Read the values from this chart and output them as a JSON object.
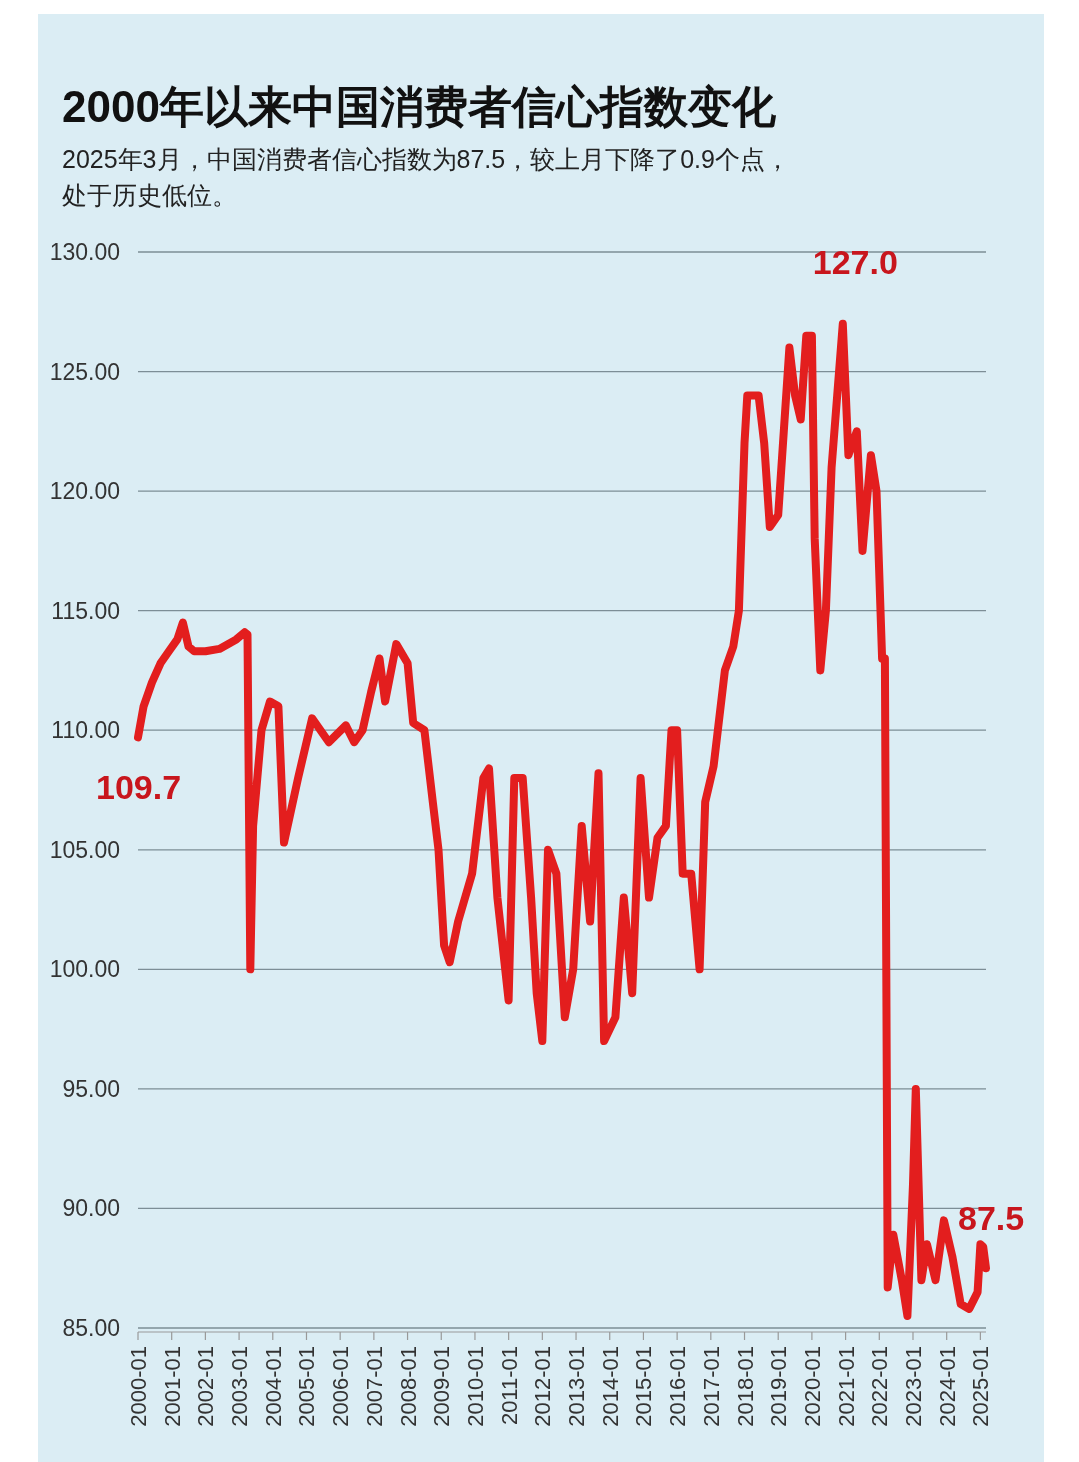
{
  "chart_data": {
    "type": "line",
    "title": "2000年以来中国消费者信心指数变化",
    "subtitle": "2025年3月，中国消费者信心指数为87.5，较上月下降了0.9个点，处于历史低位。",
    "x": [
      "2000-01",
      "2000-03",
      "2000-06",
      "2000-09",
      "2000-12",
      "2001-03",
      "2001-05",
      "2001-07",
      "2001-09",
      "2002-01",
      "2002-06",
      "2002-12",
      "2003-03",
      "2003-04",
      "2003-05",
      "2003-06",
      "2003-09",
      "2003-12",
      "2004-03",
      "2004-05",
      "2004-10",
      "2005-03",
      "2005-09",
      "2006-03",
      "2006-06",
      "2006-09",
      "2006-12",
      "2007-03",
      "2007-05",
      "2007-09",
      "2008-01",
      "2008-03",
      "2008-07",
      "2008-10",
      "2008-12",
      "2009-02",
      "2009-04",
      "2009-07",
      "2009-12",
      "2010-04",
      "2010-06",
      "2010-09",
      "2011-01",
      "2011-03",
      "2011-06",
      "2011-09",
      "2011-11",
      "2012-01",
      "2012-03",
      "2012-06",
      "2012-09",
      "2012-12",
      "2013-03",
      "2013-06",
      "2013-09",
      "2013-11",
      "2014-03",
      "2014-06",
      "2014-09",
      "2014-12",
      "2015-03",
      "2015-06",
      "2015-09",
      "2015-11",
      "2016-01",
      "2016-03",
      "2016-06",
      "2016-09",
      "2016-11",
      "2017-02",
      "2017-06",
      "2017-09",
      "2017-11",
      "2018-01",
      "2018-02",
      "2018-06",
      "2018-08",
      "2018-10",
      "2019-01",
      "2019-03",
      "2019-05",
      "2019-07",
      "2019-09",
      "2019-11",
      "2020-01",
      "2020-02",
      "2020-04",
      "2020-06",
      "2020-08",
      "2020-10",
      "2020-12",
      "2021-02",
      "2021-05",
      "2021-07",
      "2021-10",
      "2021-12",
      "2022-02",
      "2022-03",
      "2022-04",
      "2022-06",
      "2022-09",
      "2022-11",
      "2023-01",
      "2023-02",
      "2023-04",
      "2023-06",
      "2023-09",
      "2023-12",
      "2024-03",
      "2024-06",
      "2024-09",
      "2024-12",
      "2025-01",
      "2025-02",
      "2025-03"
    ],
    "series": [
      {
        "color": "#e31e1e",
        "values": [
          109.7,
          111,
          112,
          112.8,
          113.3,
          113.8,
          114.5,
          113.5,
          113.3,
          113.3,
          113.4,
          113.8,
          114.1,
          114,
          100.0,
          106,
          110,
          111.2,
          111,
          105.3,
          108,
          110.5,
          109.5,
          110.2,
          109.5,
          110,
          111.6,
          113,
          111.2,
          113.6,
          112.8,
          110.3,
          110,
          107,
          105,
          101,
          100.3,
          102,
          104,
          108,
          108.4,
          103,
          98.7,
          108,
          108,
          103,
          99,
          97,
          105,
          104,
          98,
          100,
          106,
          102,
          108.2,
          97,
          98,
          103,
          99,
          108,
          103,
          105.5,
          106,
          110,
          110,
          104,
          104,
          100,
          107,
          108.5,
          112.5,
          113.5,
          115,
          122,
          124,
          124,
          122,
          118.5,
          119,
          122.5,
          126,
          124,
          123,
          126.5,
          126.5,
          118,
          112.5,
          115,
          121,
          124,
          127.0,
          121.5,
          122.5,
          117.5,
          121.5,
          120,
          113,
          113,
          86.7,
          88.9,
          87,
          85.5,
          91,
          95,
          87,
          88.5,
          87,
          89.5,
          88,
          86,
          85.8,
          86.5,
          88.5,
          88.4,
          87.5
        ]
      }
    ],
    "xlim": [
      "2000-01",
      "2025-03"
    ],
    "xticks": [
      "2000-01",
      "2001-01",
      "2002-01",
      "2003-01",
      "2004-01",
      "2005-01",
      "2006-01",
      "2007-01",
      "2008-01",
      "2009-01",
      "2010-01",
      "2011-01",
      "2012-01",
      "2013-01",
      "2014-01",
      "2015-01",
      "2016-01",
      "2017-01",
      "2018-01",
      "2019-01",
      "2020-01",
      "2021-01",
      "2022-01",
      "2023-01",
      "2024-01",
      "2025-01"
    ],
    "ylim": [
      85,
      130
    ],
    "yticks": [
      {
        "value": 85,
        "label": "85.00"
      },
      {
        "value": 90,
        "label": "90.00"
      },
      {
        "value": 95,
        "label": "95.00"
      },
      {
        "value": 100,
        "label": "100.00"
      },
      {
        "value": 105,
        "label": "105.00"
      },
      {
        "value": 110,
        "label": "110.00"
      },
      {
        "value": 115,
        "label": "115.00"
      },
      {
        "value": 120,
        "label": "120.00"
      },
      {
        "value": 125,
        "label": "125.00"
      },
      {
        "value": 130,
        "label": "130.00"
      }
    ],
    "grid": "y",
    "marker": "none",
    "line_style": "solid",
    "annotations": [
      {
        "text": "109.7",
        "x": "2000-01",
        "y": 109.7
      },
      {
        "text": "127.0",
        "x": "2020-12",
        "y": 127.0
      },
      {
        "text": "87.5",
        "x": "2025-03",
        "y": 87.5
      }
    ]
  }
}
